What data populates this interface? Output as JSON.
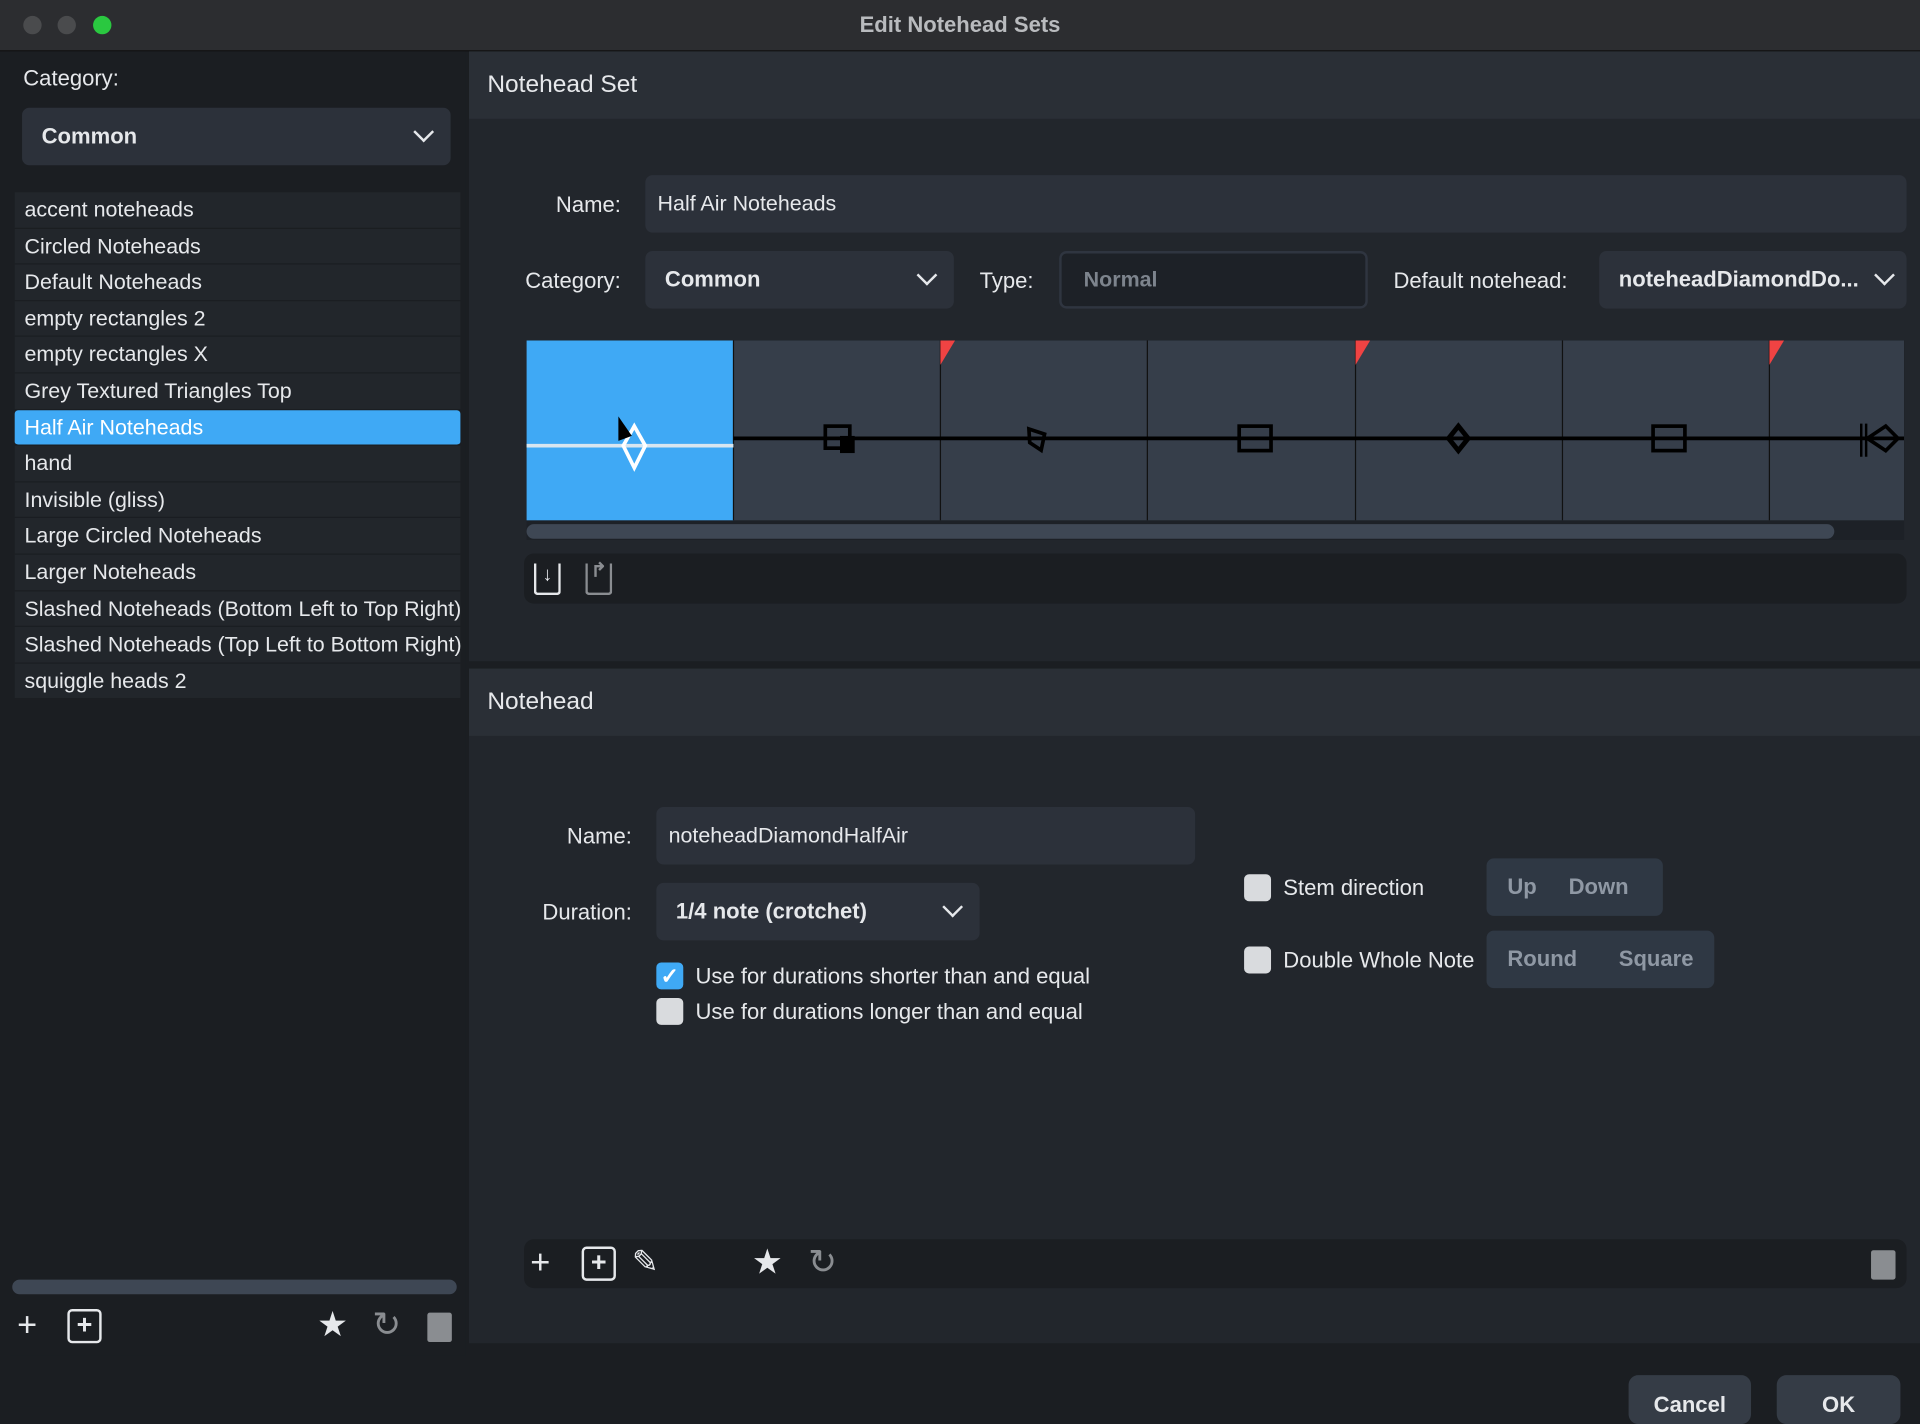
{
  "window": {
    "title": "Edit Notehead Sets",
    "traffic_lights": [
      "#4a4b4d",
      "#4a4b4d",
      "#2ac840"
    ]
  },
  "sidebar": {
    "category_label": "Category:",
    "category_value": "Common",
    "items": [
      {
        "label": "accent noteheads"
      },
      {
        "label": "Circled Noteheads"
      },
      {
        "label": "Default Noteheads"
      },
      {
        "label": "empty rectangles 2"
      },
      {
        "label": "empty rectangles X"
      },
      {
        "label": "Grey Textured Triangles Top"
      },
      {
        "label": "Half Air Noteheads",
        "selected": true
      },
      {
        "label": "hand"
      },
      {
        "label": "Invisible (gliss)"
      },
      {
        "label": "Large Circled Noteheads"
      },
      {
        "label": "Larger Noteheads"
      },
      {
        "label": "Slashed Noteheads (Bottom Left to Top Right)"
      },
      {
        "label": "Slashed Noteheads (Top Left to Bottom Right)"
      },
      {
        "label": "squiggle heads 2"
      }
    ],
    "toolbar": [
      "plus-icon",
      "duplicate-icon",
      "star-icon",
      "revert-icon",
      "trash-icon"
    ]
  },
  "notehead_set": {
    "header": "Notehead Set",
    "name_label": "Name:",
    "name_value": "Half Air Noteheads",
    "category_label": "Category:",
    "category_value": "Common",
    "type_label": "Type:",
    "type_placeholder": "Normal",
    "default_label": "Default notehead:",
    "default_value": "noteheadDiamondDo...",
    "strip": [
      "diamond-half-air",
      "square-notched",
      "diamond-tilted",
      "rectangle",
      "diamond-small",
      "rectangle",
      "double-bar-diamond"
    ],
    "accent_color": "#3fa9f5",
    "flag_color": "#f04343",
    "toolbar": [
      "import-icon",
      "export-icon"
    ]
  },
  "notehead": {
    "header": "Notehead",
    "name_label": "Name:",
    "name_value": "noteheadDiamondHalfAir",
    "duration_label": "Duration:",
    "duration_value": "1/4 note (crotchet)",
    "check_shorter": {
      "label": "Use for durations shorter than and equal",
      "checked": true
    },
    "check_longer": {
      "label": "Use for durations longer than and equal",
      "checked": false
    },
    "stem": {
      "label": "Stem direction",
      "checked": false,
      "options": [
        "Up",
        "Down"
      ]
    },
    "double_whole": {
      "label": "Double Whole Note",
      "checked": false,
      "options": [
        "Round",
        "Square"
      ]
    },
    "toolbar": [
      "plus-icon",
      "duplicate-icon",
      "pencil-icon",
      "star-icon",
      "revert-icon",
      "trash-icon"
    ]
  },
  "footer": {
    "cancel": "Cancel",
    "ok": "OK"
  }
}
